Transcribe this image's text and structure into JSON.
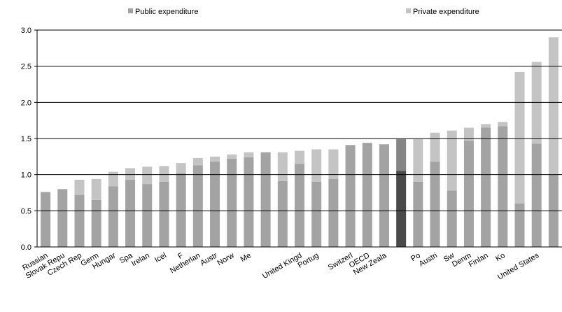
{
  "chart_data": {
    "type": "stacked_bar",
    "categories": [
      "Russian",
      "Slovak Repu",
      "Czech Rep",
      "Germ",
      "Hungar",
      "Spa",
      "Irelan",
      "Icel",
      "F",
      "Netherlan",
      "Austr",
      "Norw",
      "Me",
      null,
      null,
      "United Kingd",
      "Portug",
      null,
      "Switzerl",
      "OECD",
      "New Zeala",
      null,
      "Po",
      "Austri",
      "Sw",
      "Denm",
      "Finlan",
      "Ko",
      null,
      "United States",
      null
    ],
    "series": [
      {
        "name": "Public expenditure",
        "color": "#a3a3a3",
        "highlight_color": "#4a4a4a",
        "values": [
          0.76,
          0.8,
          0.72,
          0.65,
          0.84,
          0.93,
          0.87,
          0.9,
          1.02,
          1.13,
          1.18,
          1.22,
          1.24,
          1.31,
          0.91,
          1.15,
          0.9,
          0.94,
          1.41,
          1.44,
          1.42,
          1.05,
          0.9,
          1.18,
          0.78,
          1.47,
          1.65,
          1.67,
          0.6,
          1.43,
          1.0
        ]
      },
      {
        "name": "Private expenditure",
        "color": "#c4c4c4",
        "highlight_color": "#858585",
        "values": [
          0,
          0,
          0.21,
          0.29,
          0.2,
          0.16,
          0.24,
          0.22,
          0.14,
          0.1,
          0.07,
          0.06,
          0.07,
          0,
          0.4,
          0.18,
          0.45,
          0.41,
          0,
          0,
          0,
          0.44,
          0.59,
          0.4,
          0.83,
          0.18,
          0.05,
          0.06,
          1.82,
          1.13,
          1.9
        ]
      }
    ],
    "highlight_index": 21,
    "ylim": [
      0,
      3
    ],
    "yticks": [
      {
        "value": 0,
        "label": "0.0"
      },
      {
        "value": 0.5,
        "label": "0.5"
      },
      {
        "value": 1,
        "label": "1.0"
      },
      {
        "value": 1.5,
        "label": "1.5"
      },
      {
        "value": 2,
        "label": "2.0"
      },
      {
        "value": 2.5,
        "label": "2.5"
      },
      {
        "value": 3,
        "label": "3.0"
      }
    ],
    "grid": true
  }
}
